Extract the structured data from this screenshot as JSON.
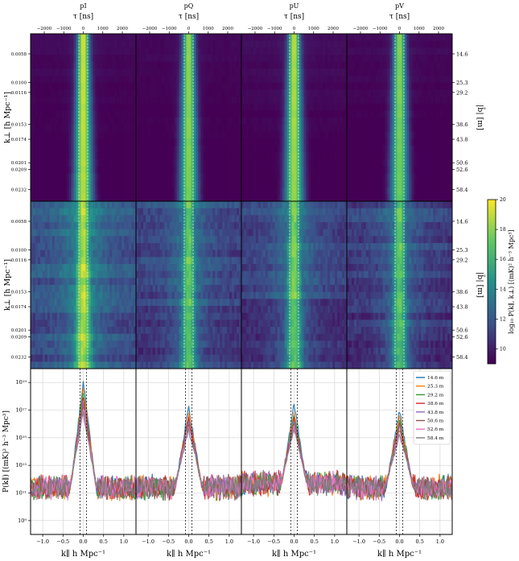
{
  "chart_data": {
    "type": "heatmap",
    "panel_titles": [
      "pI",
      "pQ",
      "pU",
      "pV"
    ],
    "top_xlabel": "τ [ns]",
    "top_xticks": [
      -2000,
      -1000,
      0,
      1000,
      2000
    ],
    "bottom_xlabel": "k∥ h Mpc⁻¹",
    "bottom_xticks": [
      "-1.0",
      "-0.5",
      "0.0",
      "0.5",
      "1.0"
    ],
    "k_perp_label": "k⊥ [h Mpc⁻¹]",
    "k_perp_ticks": [
      "0.0058",
      "0.0100",
      "0.0116",
      "0.0153",
      "0.0174",
      "0.0201",
      "0.0209",
      "0.0232"
    ],
    "baseline_label": "|b̄| [m]",
    "baseline_ticks": [
      "14.6",
      "25.3",
      "29.2",
      "38.6",
      "43.8",
      "50.6",
      "52.6",
      "58.4"
    ],
    "colorbar_label": "log₁₀ P(k∥, k⊥) [(mK)² h⁻³ Mpc³]",
    "colorbar_range": [
      9,
      20
    ],
    "colorbar_ticks": [
      "10",
      "12",
      "14",
      "16",
      "18",
      "20"
    ],
    "power_ylabel": "P(k∥) [(mK)² h⁻³ Mpc³]",
    "power_yticks": [
      "10⁹",
      "10¹¹",
      "10¹³",
      "10¹⁵",
      "10¹⁷",
      "10¹⁹"
    ],
    "power_ylim_log10": [
      8,
      20
    ],
    "series": [
      {
        "name": "14.6 m",
        "color": "#1f77b4",
        "peak_log10": [
          19.1,
          17.3,
          17.5,
          17.0
        ]
      },
      {
        "name": "25.3 m",
        "color": "#ff7f0e",
        "peak_log10": [
          18.6,
          16.8,
          16.9,
          16.6
        ]
      },
      {
        "name": "29.2 m",
        "color": "#2ca02c",
        "peak_log10": [
          18.3,
          16.4,
          16.6,
          16.3
        ]
      },
      {
        "name": "38.6 m",
        "color": "#d62728",
        "peak_log10": [
          18.0,
          16.6,
          16.5,
          16.1
        ]
      },
      {
        "name": "43.8 m",
        "color": "#9467bd",
        "peak_log10": [
          17.6,
          16.2,
          16.2,
          15.9
        ]
      },
      {
        "name": "50.6 m",
        "color": "#8c564b",
        "peak_log10": [
          17.3,
          16.0,
          16.0,
          15.6
        ]
      },
      {
        "name": "52.6 m",
        "color": "#e377c2",
        "peak_log10": [
          17.1,
          15.8,
          15.8,
          15.4
        ]
      },
      {
        "name": "58.4 m",
        "color": "#7f7f7f",
        "peak_log10": [
          16.8,
          15.6,
          15.6,
          15.2
        ]
      }
    ]
  }
}
